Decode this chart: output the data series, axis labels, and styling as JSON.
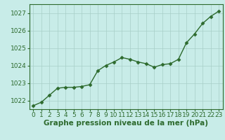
{
  "x": [
    0,
    1,
    2,
    3,
    4,
    5,
    6,
    7,
    8,
    9,
    10,
    11,
    12,
    13,
    14,
    15,
    16,
    17,
    18,
    19,
    20,
    21,
    22,
    23
  ],
  "y": [
    1021.7,
    1021.9,
    1022.3,
    1022.7,
    1022.75,
    1022.75,
    1022.8,
    1022.9,
    1023.7,
    1024.0,
    1024.2,
    1024.45,
    1024.35,
    1024.2,
    1024.1,
    1023.9,
    1024.05,
    1024.1,
    1024.35,
    1025.3,
    1025.8,
    1026.4,
    1026.8,
    1027.1
  ],
  "line_color": "#2d6a2d",
  "marker_color": "#2d6a2d",
  "bg_color": "#c8ece8",
  "grid_color": "#a8cfc8",
  "axis_line_color": "#2d6a2d",
  "tick_label_color": "#2d6a2d",
  "xlabel": "Graphe pression niveau de la mer (hPa)",
  "xlabel_color": "#2d6a2d",
  "ylim": [
    1021.5,
    1027.5
  ],
  "yticks": [
    1022,
    1023,
    1024,
    1025,
    1026,
    1027
  ],
  "xticks": [
    0,
    1,
    2,
    3,
    4,
    5,
    6,
    7,
    8,
    9,
    10,
    11,
    12,
    13,
    14,
    15,
    16,
    17,
    18,
    19,
    20,
    21,
    22,
    23
  ],
  "tick_fontsize": 6.5,
  "xlabel_fontsize": 7.5,
  "marker_size": 2.5,
  "line_width": 1.0
}
